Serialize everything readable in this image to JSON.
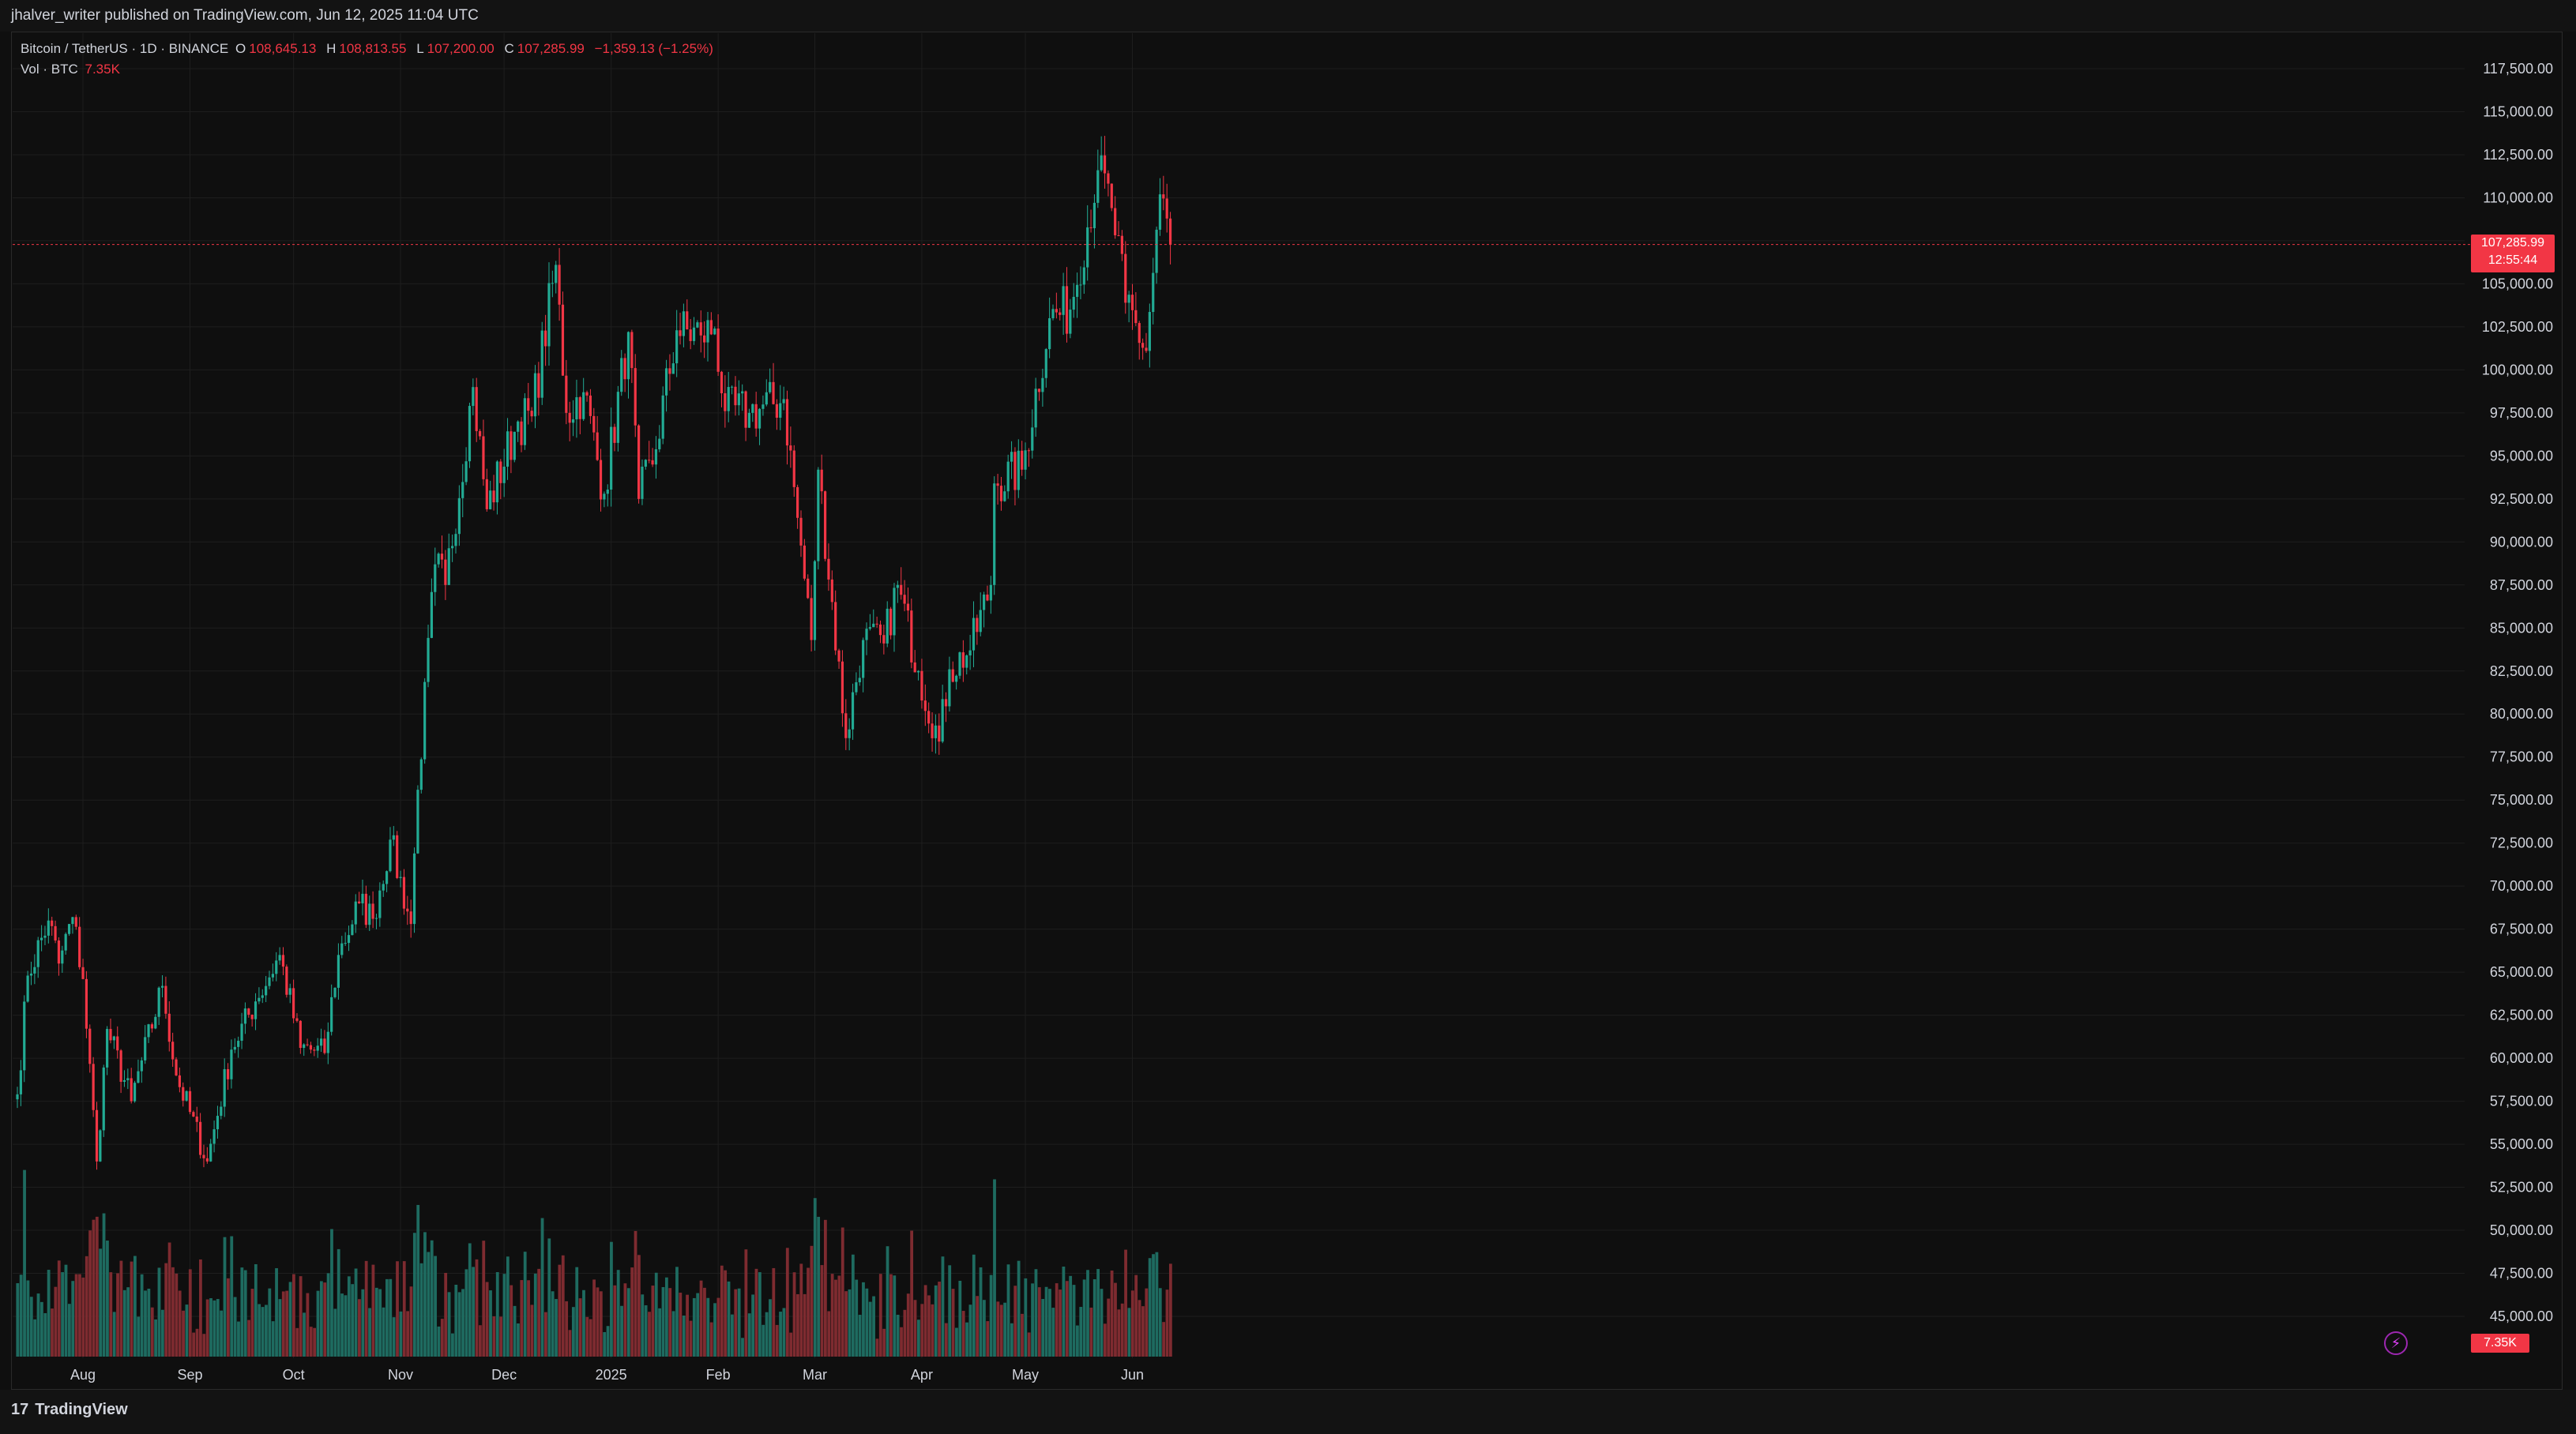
{
  "header": {
    "published_text": "jhalver_writer published on TradingView.com, Jun 12, 2025 11:04 UTC"
  },
  "legend": {
    "symbol": "Bitcoin / TetherUS · 1D · BINANCE",
    "open_label": "O",
    "open": "108,645.13",
    "high_label": "H",
    "high": "108,813.55",
    "low_label": "L",
    "low": "107,200.00",
    "close_label": "C",
    "close": "107,285.99",
    "change": "−1,359.13 (−1.25%)",
    "vol_label": "Vol · BTC",
    "vol_value": "7.35K"
  },
  "price_tag": {
    "price": "107,285.99",
    "countdown": "12:55:44"
  },
  "volume_tag": "7.35K",
  "footer": {
    "brand": "TradingView",
    "logo_mark": "17"
  },
  "colors": {
    "up": "#22ab94",
    "down": "#f23645",
    "up_vol": "#1e6b60",
    "down_vol": "#7e2b30",
    "background": "#0f0f0f",
    "grid": "#1e1e1e",
    "axis_text": "#d1d4dc"
  },
  "chart_data": {
    "type": "candlestick",
    "symbol": "Bitcoin / TetherUS",
    "interval": "1D",
    "exchange": "BINANCE",
    "y_axis": {
      "side": "right",
      "range": [
        43500,
        118500
      ],
      "ticks": [
        "45,000.00",
        "47,500.00",
        "50,000.00",
        "52,500.00",
        "55,000.00",
        "57,500.00",
        "60,000.00",
        "62,500.00",
        "65,000.00",
        "67,500.00",
        "70,000.00",
        "72,500.00",
        "75,000.00",
        "77,500.00",
        "80,000.00",
        "82,500.00",
        "85,000.00",
        "87,500.00",
        "90,000.00",
        "92,500.00",
        "95,000.00",
        "97,500.00",
        "100,000.00",
        "102,500.00",
        "105,000.00",
        "107,500.00",
        "110,000.00",
        "112,500.00",
        "115,000.00",
        "117,500.00"
      ]
    },
    "x_axis": {
      "tick_labels": [
        "Aug",
        "Sep",
        "Oct",
        "Nov",
        "Dec",
        "2025",
        "Feb",
        "Mar",
        "Apr",
        "May",
        "Jun"
      ],
      "tick_dates": [
        "2024-08-01",
        "2024-09-01",
        "2024-10-01",
        "2024-11-01",
        "2024-12-01",
        "2025-01-01",
        "2025-02-01",
        "2025-03-01",
        "2025-04-01",
        "2025-05-01",
        "2025-06-01"
      ],
      "start_date": "2024-07-13",
      "end_date": "2025-06-12"
    },
    "last_price": 107285.99,
    "grid": true,
    "keypoints": [
      [
        "2024-07-13",
        57900
      ],
      [
        "2024-07-16",
        64800
      ],
      [
        "2024-07-22",
        68000
      ],
      [
        "2024-07-25",
        65500
      ],
      [
        "2024-07-29",
        68200
      ],
      [
        "2024-08-01",
        64600
      ],
      [
        "2024-08-05",
        54000
      ],
      [
        "2024-08-08",
        61700
      ],
      [
        "2024-08-15",
        57500
      ],
      [
        "2024-08-24",
        64200
      ],
      [
        "2024-08-28",
        59000
      ],
      [
        "2024-09-06",
        54000
      ],
      [
        "2024-09-13",
        60500
      ],
      [
        "2024-09-20",
        63300
      ],
      [
        "2024-09-27",
        66000
      ],
      [
        "2024-10-03",
        60600
      ],
      [
        "2024-10-10",
        60300
      ],
      [
        "2024-10-14",
        66000
      ],
      [
        "2024-10-20",
        69000
      ],
      [
        "2024-10-24",
        68100
      ],
      [
        "2024-10-29",
        72700
      ],
      [
        "2024-11-04",
        67800
      ],
      [
        "2024-11-06",
        75600
      ],
      [
        "2024-11-11",
        88700
      ],
      [
        "2024-11-14",
        87500
      ],
      [
        "2024-11-22",
        99000
      ],
      [
        "2024-11-26",
        91900
      ],
      [
        "2024-12-05",
        97000
      ],
      [
        "2024-12-09",
        97300
      ],
      [
        "2024-12-16",
        106100
      ],
      [
        "2024-12-19",
        97500
      ],
      [
        "2024-12-24",
        98700
      ],
      [
        "2024-12-30",
        92800
      ],
      [
        "2025-01-06",
        102200
      ],
      [
        "2025-01-09",
        92500
      ],
      [
        "2025-01-13",
        94500
      ],
      [
        "2025-01-20",
        102300
      ],
      [
        "2025-01-27",
        102000
      ],
      [
        "2025-01-31",
        102400
      ],
      [
        "2025-02-03",
        97600
      ],
      [
        "2025-02-10",
        97500
      ],
      [
        "2025-02-20",
        98300
      ],
      [
        "2025-02-24",
        91400
      ],
      [
        "2025-02-28",
        84300
      ],
      [
        "2025-03-02",
        94200
      ],
      [
        "2025-03-10",
        78600
      ],
      [
        "2025-03-15",
        84300
      ],
      [
        "2025-03-21",
        84100
      ],
      [
        "2025-03-25",
        87500
      ],
      [
        "2025-03-31",
        82500
      ],
      [
        "2025-04-06",
        78400
      ],
      [
        "2025-04-09",
        82600
      ],
      [
        "2025-04-15",
        83700
      ],
      [
        "2025-04-21",
        87500
      ],
      [
        "2025-04-22",
        93400
      ],
      [
        "2025-04-30",
        94200
      ],
      [
        "2025-05-08",
        103000
      ],
      [
        "2025-05-14",
        103500
      ],
      [
        "2025-05-22",
        111600
      ],
      [
        "2025-05-26",
        109400
      ],
      [
        "2025-05-30",
        103900
      ],
      [
        "2025-06-05",
        101100
      ],
      [
        "2025-06-09",
        110200
      ],
      [
        "2025-06-12",
        107286
      ]
    ]
  }
}
